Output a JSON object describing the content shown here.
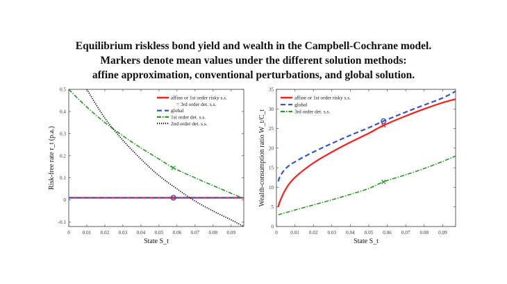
{
  "title_lines": [
    "Equilibrium riskless bond yield and wealth in the Campbell-Cochrane model.",
    "Markers denote mean values under the different solution methods:",
    "affine approximation, conventional perturbations, and global solution."
  ],
  "colors": {
    "red": "#ff1a1a",
    "blue": "#3355cc",
    "green": "#229922",
    "black": "#000000"
  },
  "chart_data": [
    {
      "type": "line",
      "xlabel": "State S_t",
      "ylabel": "Risk-free rate r_t (p.a.)",
      "xlim": [
        0,
        0.097
      ],
      "ylim": [
        -0.12,
        0.5
      ],
      "xticks": [
        "0",
        "0.01",
        "0.02",
        "0.03",
        "0.04",
        "0.05",
        "0.06",
        "0.07",
        "0.08",
        "0.09"
      ],
      "yticks": [
        "-0.1",
        "0",
        "0.1",
        "0.2",
        "0.3",
        "0.4",
        "0.5"
      ],
      "legend": [
        "affine or 1st order risky s.s.",
        "= 3rd order det. s.s.",
        "global",
        "1st order det. s.s.",
        "2nd order det. s.s."
      ],
      "series": [
        {
          "name": "affine or 1st order risky s.s. = 3rd order det. s.s.",
          "color": "red",
          "style": "solid",
          "x": [
            0.0,
            0.097
          ],
          "y": [
            0.01,
            0.01
          ]
        },
        {
          "name": "global",
          "color": "blue",
          "style": "dashed",
          "x": [
            0.0,
            0.097
          ],
          "y": [
            0.01,
            0.01
          ]
        },
        {
          "name": "1st order det. s.s.",
          "color": "green",
          "style": "dashdot",
          "x": [
            0.0,
            0.01,
            0.02,
            0.03,
            0.04,
            0.05,
            0.058,
            0.07,
            0.08,
            0.09,
            0.096
          ],
          "y": [
            0.5,
            0.42,
            0.35,
            0.29,
            0.235,
            0.185,
            0.145,
            0.1,
            0.065,
            0.03,
            0.01
          ]
        },
        {
          "name": "2nd order det. s.s.",
          "color": "black",
          "style": "dotted",
          "x": [
            0.01,
            0.02,
            0.03,
            0.04,
            0.05,
            0.06,
            0.07,
            0.08,
            0.09,
            0.097
          ],
          "y": [
            0.5,
            0.37,
            0.27,
            0.185,
            0.11,
            0.05,
            -0.005,
            -0.05,
            -0.09,
            -0.12
          ]
        }
      ],
      "markers": [
        {
          "series": "global",
          "x": 0.058,
          "y": 0.01,
          "symbol": "o"
        },
        {
          "series": "affine",
          "x": 0.058,
          "y": 0.01,
          "symbol": "x"
        },
        {
          "series": "1st order det. s.s.",
          "x": 0.058,
          "y": 0.145,
          "symbol": "x"
        }
      ]
    },
    {
      "type": "line",
      "xlabel": "State S_t",
      "ylabel": "Wealth-consumption ratio W_t/C_t",
      "xlim": [
        0,
        0.097
      ],
      "ylim": [
        0,
        35
      ],
      "xticks": [
        "0",
        "0.01",
        "0.02",
        "0.03",
        "0.04",
        "0.05",
        "0.06",
        "0.07",
        "0.08",
        "0.09"
      ],
      "yticks": [
        "0",
        "5",
        "10",
        "15",
        "20",
        "25",
        "30",
        "35"
      ],
      "legend": [
        "affine or 1st order risky s.s.",
        "global",
        "3rd order det. s.s."
      ],
      "series": [
        {
          "name": "affine or 1st order risky s.s.",
          "color": "red",
          "style": "solid",
          "x": [
            0.001,
            0.002,
            0.005,
            0.01,
            0.02,
            0.03,
            0.04,
            0.05,
            0.058,
            0.07,
            0.08,
            0.09,
            0.097
          ],
          "y": [
            5.0,
            6.5,
            9.5,
            12.5,
            16.2,
            19.0,
            21.5,
            23.8,
            25.8,
            28.2,
            30.0,
            31.6,
            32.5
          ]
        },
        {
          "name": "global",
          "color": "blue",
          "style": "dashed",
          "x": [
            0.001,
            0.002,
            0.005,
            0.01,
            0.02,
            0.03,
            0.04,
            0.05,
            0.058,
            0.07,
            0.08,
            0.09,
            0.097
          ],
          "y": [
            11.5,
            12.8,
            14.8,
            16.5,
            19.0,
            21.2,
            23.3,
            25.2,
            26.9,
            29.2,
            31.0,
            32.8,
            34.5
          ]
        },
        {
          "name": "3rd order det. s.s.",
          "color": "green",
          "style": "dashdot",
          "x": [
            0.001,
            0.01,
            0.02,
            0.03,
            0.04,
            0.05,
            0.058,
            0.07,
            0.08,
            0.09,
            0.097
          ],
          "y": [
            3.0,
            4.2,
            5.5,
            6.8,
            8.2,
            9.7,
            11.4,
            13.2,
            14.8,
            16.6,
            18.0
          ]
        }
      ],
      "markers": [
        {
          "series": "global",
          "x": 0.058,
          "y": 26.9,
          "symbol": "o"
        },
        {
          "series": "affine or 1st order risky s.s.",
          "x": 0.058,
          "y": 25.8,
          "symbol": "x"
        },
        {
          "series": "3rd order det. s.s.",
          "x": 0.058,
          "y": 11.4,
          "symbol": "x"
        }
      ]
    }
  ]
}
